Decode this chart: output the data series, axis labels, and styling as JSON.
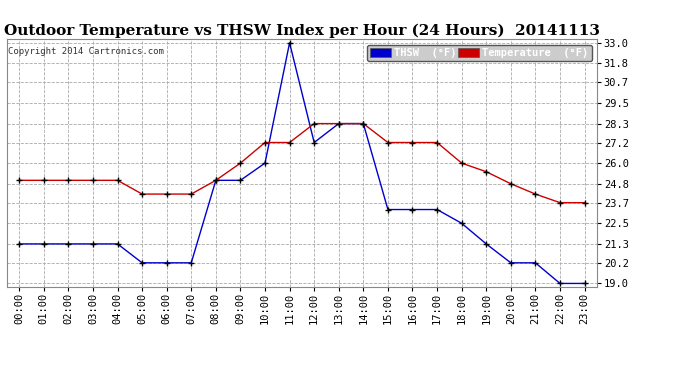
{
  "title": "Outdoor Temperature vs THSW Index per Hour (24 Hours)  20141113",
  "copyright": "Copyright 2014 Cartronics.com",
  "background_color": "#ffffff",
  "hours": [
    "00:00",
    "01:00",
    "02:00",
    "03:00",
    "04:00",
    "05:00",
    "06:00",
    "07:00",
    "08:00",
    "09:00",
    "10:00",
    "11:00",
    "12:00",
    "13:00",
    "14:00",
    "15:00",
    "16:00",
    "17:00",
    "18:00",
    "19:00",
    "20:00",
    "21:00",
    "22:00",
    "23:00"
  ],
  "thsw": [
    21.3,
    21.3,
    21.3,
    21.3,
    21.3,
    20.2,
    20.2,
    20.2,
    25.0,
    25.0,
    26.0,
    33.0,
    27.2,
    28.3,
    28.3,
    23.3,
    23.3,
    23.3,
    22.5,
    21.3,
    20.2,
    20.2,
    19.0,
    19.0
  ],
  "temperature": [
    25.0,
    25.0,
    25.0,
    25.0,
    25.0,
    24.2,
    24.2,
    24.2,
    25.0,
    26.0,
    27.2,
    27.2,
    28.3,
    28.3,
    28.3,
    27.2,
    27.2,
    27.2,
    26.0,
    25.5,
    24.8,
    24.2,
    23.7,
    23.7
  ],
  "thsw_color": "#0000cc",
  "temp_color": "#cc0000",
  "line_color": "#000000",
  "ylim_min": 18.8,
  "ylim_max": 33.2,
  "yticks": [
    19.0,
    20.2,
    21.3,
    22.5,
    23.7,
    24.8,
    26.0,
    27.2,
    28.3,
    29.5,
    30.7,
    31.8,
    33.0
  ],
  "grid_color": "#aaaaaa",
  "title_fontsize": 11,
  "tick_fontsize": 7.5,
  "copyright_fontsize": 6.5,
  "legend_thsw_label": "THSW  (°F)",
  "legend_temp_label": "Temperature  (°F)"
}
